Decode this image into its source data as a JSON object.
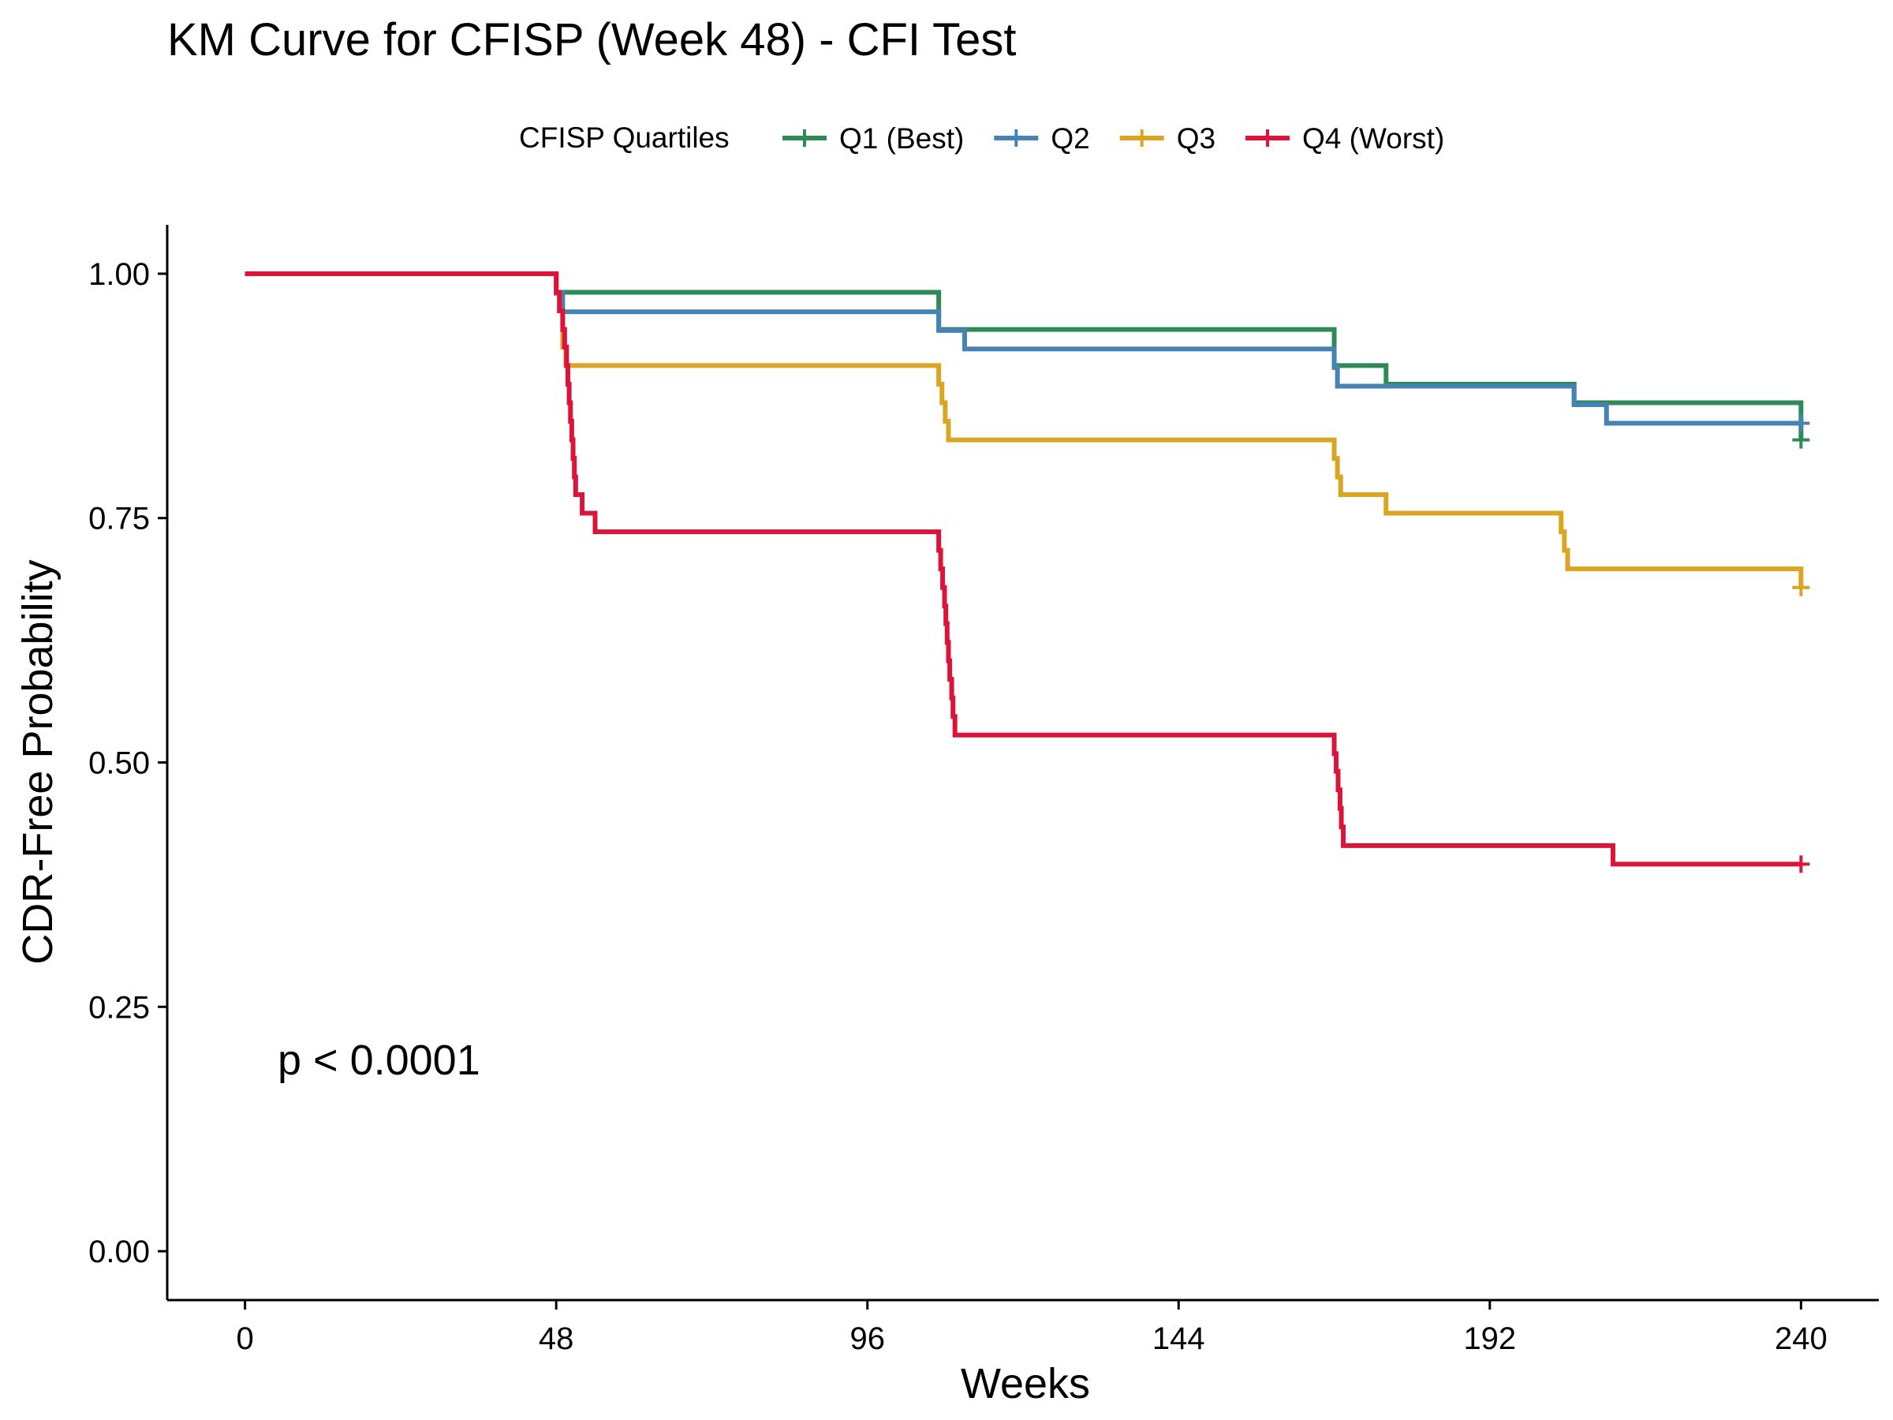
{
  "chart_data": {
    "type": "line",
    "title": "KM Curve for CFISP (Week 48) - CFI Test",
    "xlabel": "Weeks",
    "ylabel": "CDR-Free Probability",
    "xlim": [
      -12,
      252
    ],
    "ylim": [
      -0.05,
      1.05
    ],
    "x_ticks": [
      0,
      48,
      96,
      144,
      192,
      240
    ],
    "y_ticks": [
      0.0,
      0.25,
      0.5,
      0.75,
      1.0
    ],
    "x_tick_labels": [
      "0",
      "48",
      "96",
      "144",
      "192",
      "240"
    ],
    "y_tick_labels": [
      "0.00",
      "0.25",
      "0.50",
      "0.75",
      "1.00"
    ],
    "grid": false,
    "legend": {
      "title": "CFISP Quartiles",
      "placement": "top"
    },
    "annotation": "p < 0.0001",
    "step": true,
    "series": [
      {
        "name": "Q1 (Best)",
        "color": "#2E8B57",
        "points": [
          [
            0,
            1.0
          ],
          [
            48,
            0.981
          ],
          [
            107,
            0.943
          ],
          [
            168,
            0.906
          ],
          [
            176,
            0.887
          ],
          [
            205,
            0.868
          ],
          [
            240,
            0.83
          ]
        ],
        "censor": [
          [
            240,
            0.83
          ]
        ]
      },
      {
        "name": "Q2",
        "color": "#4682B4",
        "points": [
          [
            0,
            1.0
          ],
          [
            48,
            0.98
          ],
          [
            49,
            0.961
          ],
          [
            107,
            0.942
          ],
          [
            111,
            0.923
          ],
          [
            168,
            0.904
          ],
          [
            168.5,
            0.885
          ],
          [
            205,
            0.866
          ],
          [
            210,
            0.847
          ],
          [
            240,
            0.847
          ]
        ],
        "censor": [
          [
            240,
            0.847
          ]
        ]
      },
      {
        "name": "Q3",
        "color": "#DAA520",
        "points": [
          [
            0,
            1.0
          ],
          [
            48,
            0.981
          ],
          [
            48.5,
            0.962
          ],
          [
            49,
            0.925
          ],
          [
            49.5,
            0.906
          ],
          [
            107,
            0.887
          ],
          [
            107.5,
            0.868
          ],
          [
            108,
            0.849
          ],
          [
            108.5,
            0.83
          ],
          [
            168,
            0.811
          ],
          [
            168.5,
            0.792
          ],
          [
            169,
            0.774
          ],
          [
            176,
            0.755
          ],
          [
            203,
            0.736
          ],
          [
            203.5,
            0.717
          ],
          [
            204,
            0.698
          ],
          [
            240,
            0.679
          ]
        ],
        "censor": [
          [
            240,
            0.679
          ]
        ]
      },
      {
        "name": "Q4 (Worst)",
        "color": "#DC143C",
        "points": [
          [
            0,
            1.0
          ],
          [
            48,
            0.981
          ],
          [
            48.5,
            0.962
          ],
          [
            49,
            0.943
          ],
          [
            49.3,
            0.925
          ],
          [
            49.6,
            0.906
          ],
          [
            49.8,
            0.887
          ],
          [
            50,
            0.868
          ],
          [
            50.2,
            0.849
          ],
          [
            50.4,
            0.83
          ],
          [
            50.6,
            0.811
          ],
          [
            50.8,
            0.792
          ],
          [
            51,
            0.774
          ],
          [
            52,
            0.755
          ],
          [
            54,
            0.736
          ],
          [
            107,
            0.717
          ],
          [
            107.3,
            0.698
          ],
          [
            107.6,
            0.679
          ],
          [
            107.9,
            0.66
          ],
          [
            108.1,
            0.642
          ],
          [
            108.3,
            0.623
          ],
          [
            108.5,
            0.604
          ],
          [
            108.7,
            0.585
          ],
          [
            109,
            0.566
          ],
          [
            109.2,
            0.547
          ],
          [
            109.5,
            0.528
          ],
          [
            168,
            0.509
          ],
          [
            168.3,
            0.491
          ],
          [
            168.6,
            0.472
          ],
          [
            168.9,
            0.453
          ],
          [
            169.1,
            0.434
          ],
          [
            169.4,
            0.415
          ],
          [
            211,
            0.396
          ],
          [
            240,
            0.396
          ]
        ],
        "censor": [
          [
            240,
            0.396
          ]
        ]
      }
    ]
  }
}
